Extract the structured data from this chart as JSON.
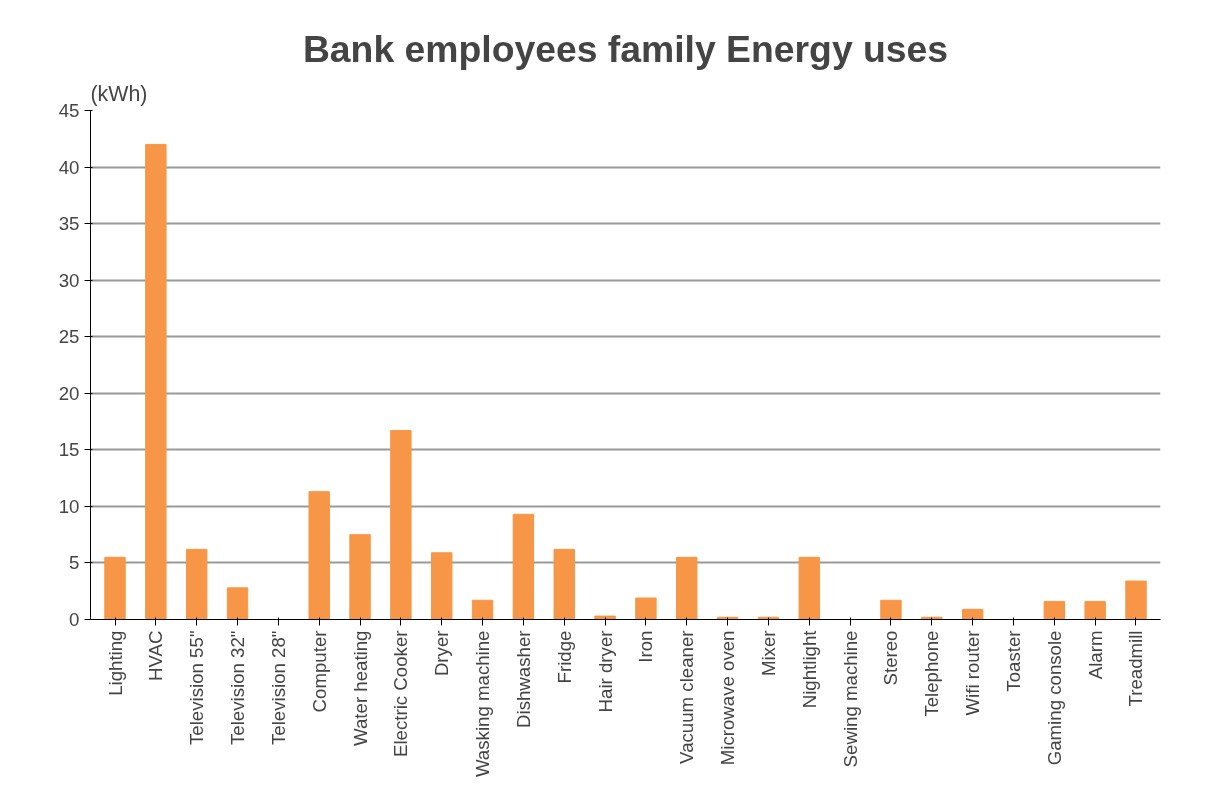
{
  "chart_data": {
    "type": "bar",
    "title": "Bank employees family Energy uses",
    "ylabel": "(kWh)",
    "categories": [
      "Lighting",
      "HVAC",
      "Television 55\"",
      "Television 32\"",
      "Television 28\"",
      "Computer",
      "Water heating",
      "Electric Cooker",
      "Dryer",
      "Wasking machine",
      "Dishwasher",
      "Fridge",
      "Hair dryer",
      "Iron",
      "Vacuum cleaner",
      "Microwave oven",
      "Mixer",
      "Nightlight",
      "Sewing machine",
      "Stereo",
      "Telephone",
      "Wifi router",
      "Toaster",
      "Gaming console",
      "Alarm",
      "Treadmill"
    ],
    "values": [
      5.5,
      42,
      6.2,
      2.8,
      0,
      11.3,
      7.5,
      16.7,
      5.9,
      1.7,
      9.3,
      6.2,
      0.3,
      1.9,
      5.5,
      0.2,
      0.2,
      5.5,
      0,
      1.7,
      0.2,
      0.9,
      0,
      1.6,
      1.6,
      3.4
    ],
    "color": "#f79646",
    "ylim": [
      0,
      45
    ],
    "yticks": [
      0,
      5,
      10,
      15,
      20,
      25,
      30,
      35,
      40,
      45
    ],
    "grid": "y"
  }
}
